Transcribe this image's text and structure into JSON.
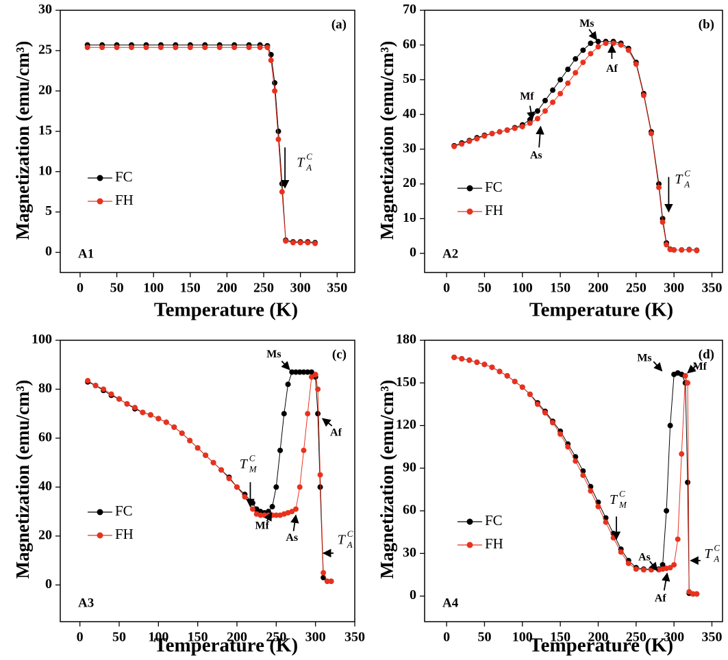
{
  "chart_data": [
    {
      "type": "line",
      "panel_label": "(a)",
      "sample_label": "A1",
      "x_label": "Temperature (K)",
      "y_label": "Magnetization (emu/cm³)",
      "xlim": [
        -27,
        374
      ],
      "ylim": [
        -2.5,
        30
      ],
      "xticks": [
        0,
        50,
        100,
        150,
        200,
        250,
        300,
        350
      ],
      "yticks": [
        0,
        5,
        10,
        15,
        20,
        25,
        30
      ],
      "x": [
        10,
        30,
        50,
        70,
        90,
        110,
        130,
        150,
        170,
        190,
        210,
        230,
        245,
        255,
        260,
        265,
        270,
        275,
        280,
        290,
        300,
        310,
        320
      ],
      "series": [
        {
          "name": "FC",
          "color": "#000000",
          "values": [
            25.7,
            25.7,
            25.7,
            25.7,
            25.7,
            25.7,
            25.7,
            25.7,
            25.7,
            25.7,
            25.7,
            25.7,
            25.7,
            25.6,
            24.5,
            21,
            15,
            8.5,
            1.5,
            1.3,
            1.3,
            1.3,
            1.2
          ]
        },
        {
          "name": "FH",
          "color": "#e8321e",
          "values": [
            25.4,
            25.4,
            25.4,
            25.4,
            25.4,
            25.4,
            25.4,
            25.4,
            25.4,
            25.4,
            25.4,
            25.4,
            25.4,
            25.4,
            23.8,
            20,
            14,
            7.5,
            1.4,
            1.2,
            1.2,
            1.2,
            1.1
          ]
        }
      ],
      "annotations": [
        {
          "text": "T",
          "sup": "C",
          "sub": "A"
        }
      ]
    },
    {
      "type": "line",
      "panel_label": "(b)",
      "sample_label": "A2",
      "x_label": "Temperature (K)",
      "y_label": "Magnetization (emu/cm³)",
      "xlim": [
        -29,
        364
      ],
      "ylim": [
        -5.5,
        70
      ],
      "xticks": [
        0,
        50,
        100,
        150,
        200,
        250,
        300,
        350
      ],
      "yticks": [
        0,
        10,
        20,
        30,
        40,
        50,
        60,
        70
      ],
      "x": [
        10,
        20,
        30,
        40,
        50,
        60,
        70,
        80,
        90,
        100,
        110,
        120,
        130,
        140,
        150,
        160,
        170,
        180,
        190,
        200,
        210,
        220,
        230,
        240,
        250,
        260,
        270,
        280,
        285,
        290,
        295,
        300,
        310,
        320,
        330
      ],
      "series": [
        {
          "name": "FC",
          "color": "#000000",
          "values": [
            31,
            31.8,
            32.5,
            33.3,
            34,
            34.5,
            35,
            35.5,
            36.2,
            37,
            38.5,
            41,
            44,
            47,
            50,
            53,
            56,
            58.5,
            60.5,
            61,
            61,
            61,
            60.5,
            59,
            55,
            46,
            35,
            20,
            10,
            3,
            1.2,
            1,
            1,
            1.1,
            0.9
          ]
        },
        {
          "name": "FH",
          "color": "#e8321e",
          "values": [
            30.8,
            31.5,
            32.3,
            33,
            33.8,
            34.5,
            35,
            35.5,
            36,
            36.5,
            37.5,
            38.8,
            41,
            43.5,
            46,
            49,
            52,
            55,
            57.5,
            59.5,
            60.5,
            60.5,
            60,
            58.5,
            54.5,
            45.5,
            34.5,
            19,
            9,
            2.5,
            1.1,
            1,
            1,
            1,
            0.8
          ]
        }
      ],
      "annotations": [
        {
          "text": "Ms"
        },
        {
          "text": "Mf"
        },
        {
          "text": "As"
        },
        {
          "text": "Af"
        },
        {
          "text": "T",
          "sup": "C",
          "sub": "A"
        }
      ]
    },
    {
      "type": "line",
      "panel_label": "(c)",
      "sample_label": "A3",
      "x_label": "Temperature (K)",
      "y_label": "Magnetization (emu/cm³)",
      "xlim": [
        -25,
        350
      ],
      "ylim": [
        -15,
        100
      ],
      "xticks": [
        0,
        50,
        100,
        150,
        200,
        250,
        300,
        350
      ],
      "yticks": [
        0,
        20,
        40,
        60,
        80,
        100
      ],
      "x": [
        10,
        20,
        30,
        40,
        50,
        60,
        70,
        80,
        90,
        100,
        110,
        120,
        130,
        140,
        150,
        160,
        170,
        180,
        190,
        200,
        210,
        220,
        225,
        230,
        235,
        240,
        245,
        250,
        255,
        260,
        265,
        270,
        275,
        280,
        285,
        290,
        295,
        300,
        303,
        306,
        310,
        315,
        320
      ],
      "series": [
        {
          "name": "FC",
          "color": "#000000",
          "values": [
            83,
            81.5,
            79.5,
            77.5,
            76,
            74,
            72,
            70.5,
            69.5,
            68,
            66.5,
            64.5,
            62,
            59,
            56,
            53,
            50,
            47,
            44,
            40,
            37,
            33.5,
            31,
            30,
            29.5,
            30,
            32,
            40,
            55,
            70,
            82,
            87,
            87,
            87,
            87,
            87,
            87,
            85,
            70,
            40,
            3,
            1.5,
            1.5
          ]
        },
        {
          "name": "FH",
          "color": "#e8321e",
          "values": [
            83.5,
            81.5,
            80,
            78,
            76,
            74,
            72.5,
            70.5,
            69.5,
            68,
            66.5,
            64.5,
            62,
            59,
            56,
            53,
            50,
            47,
            43.5,
            40,
            36,
            31,
            29,
            28.5,
            28.5,
            28.5,
            28.5,
            28.5,
            28.5,
            29,
            29.5,
            30,
            31,
            40,
            55,
            70,
            85,
            86,
            80,
            45,
            5,
            1.5,
            1.5
          ]
        }
      ],
      "annotations": [
        {
          "text": "Ms"
        },
        {
          "text": "Mf"
        },
        {
          "text": "As"
        },
        {
          "text": "Af"
        },
        {
          "text": "T",
          "sup": "C",
          "sub": "M"
        },
        {
          "text": "T",
          "sup": "C",
          "sub": "A"
        }
      ]
    },
    {
      "type": "line",
      "panel_label": "(d)",
      "sample_label": "A4",
      "x_label": "Temperature (K)",
      "y_label": "Magnetization (emu/cm³)",
      "xlim": [
        -29,
        364
      ],
      "ylim": [
        -18,
        180
      ],
      "xticks": [
        0,
        50,
        100,
        150,
        200,
        250,
        300,
        350
      ],
      "yticks": [
        0,
        30,
        60,
        90,
        120,
        150,
        180
      ],
      "x": [
        10,
        20,
        30,
        40,
        50,
        60,
        70,
        80,
        90,
        100,
        110,
        120,
        130,
        140,
        150,
        160,
        170,
        180,
        190,
        200,
        210,
        220,
        230,
        240,
        250,
        260,
        270,
        280,
        285,
        290,
        295,
        300,
        305,
        310,
        315,
        318,
        320,
        325,
        330
      ],
      "series": [
        {
          "name": "FC",
          "color": "#000000",
          "values": [
            168,
            167,
            166,
            164.5,
            163,
            161,
            158,
            155,
            151,
            147,
            142,
            136,
            130,
            123,
            116,
            107,
            98,
            88,
            77,
            66,
            55,
            44,
            33,
            25,
            20,
            19,
            19,
            19,
            22,
            60,
            120,
            156,
            157,
            156,
            150,
            80,
            2,
            1.5,
            1.5
          ]
        },
        {
          "name": "FH",
          "color": "#e8321e",
          "values": [
            168,
            167,
            166,
            164.5,
            163,
            161,
            158,
            155,
            151,
            147,
            142,
            135,
            129,
            122,
            114,
            105,
            95,
            85,
            74,
            63,
            52,
            41,
            31,
            23,
            19,
            18.5,
            18.5,
            18.5,
            19,
            19.5,
            20,
            22,
            40,
            100,
            155,
            150,
            3,
            1.5,
            1.5
          ]
        }
      ],
      "annotations": [
        {
          "text": "Ms"
        },
        {
          "text": "Mf"
        },
        {
          "text": "As"
        },
        {
          "text": "Af"
        },
        {
          "text": "T",
          "sup": "C",
          "sub": "M"
        },
        {
          "text": "T",
          "sup": "C",
          "sub": "A"
        }
      ]
    }
  ]
}
